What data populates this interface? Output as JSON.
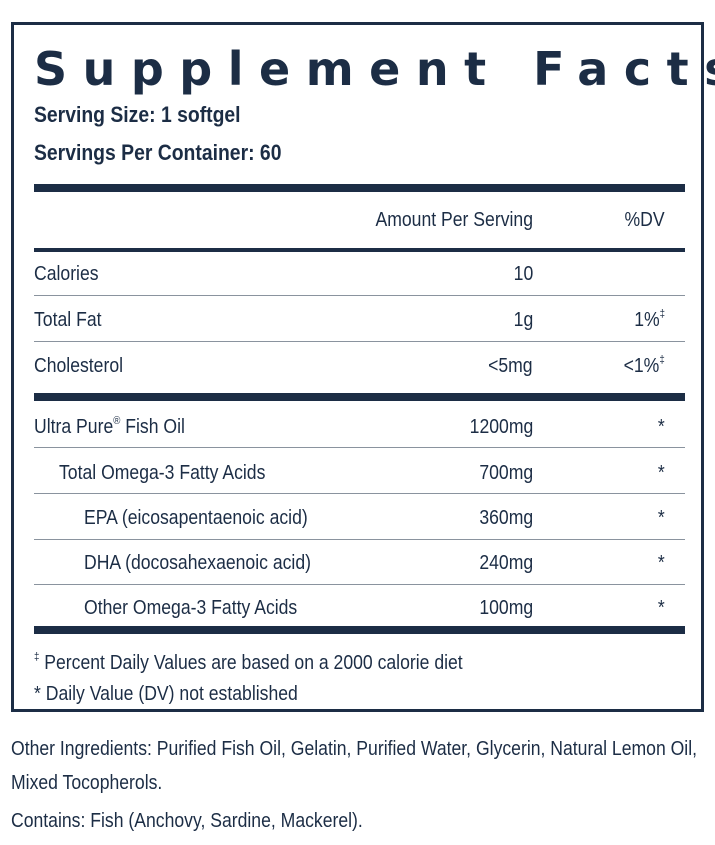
{
  "panel": {
    "title": "Supplement Facts",
    "serving_size": "Serving Size: 1 softgel",
    "servings_per_container": "Servings Per Container: 60",
    "header": {
      "amount": "Amount Per Serving",
      "dv": "%DV"
    },
    "rows": [
      {
        "label": "Calories",
        "amount": "10",
        "dv": ""
      },
      {
        "label": "Total Fat",
        "amount": "1g",
        "dv": "1%",
        "dv_mark": "‡"
      },
      {
        "label": "Cholesterol",
        "amount": "<5mg",
        "dv": "<1%",
        "dv_mark": "‡"
      }
    ],
    "fish_oil": {
      "label": "Ultra Pure",
      "mark": "®",
      "label_tail": " Fish Oil",
      "amount": "1200mg",
      "dv": "*"
    },
    "sub_rows": [
      {
        "label": "Total Omega-3 Fatty Acids",
        "amount": "700mg",
        "dv": "*"
      },
      {
        "label": "EPA (eicosapentaenoic acid)",
        "amount": "360mg",
        "dv": "*"
      },
      {
        "label": "DHA (docosahexaenoic acid)",
        "amount": "240mg",
        "dv": "*"
      },
      {
        "label": "Other Omega-3 Fatty Acids",
        "amount": "100mg",
        "dv": "*"
      }
    ],
    "footnotes": {
      "note1_mark": "‡",
      "note1": " Percent Daily Values are based on a 2000 calorie diet",
      "note2": "* Daily Value (DV) not established"
    }
  },
  "other_ingredients": "Other Ingredients: Purified Fish Oil, Gelatin, Purified Water, Glycerin, Natural Lemon Oil, Mixed Tocopherols.",
  "contains": "Contains: Fish (Anchovy, Sardine, Mackerel).",
  "colors": {
    "ink": "#1c2d45",
    "thin_rule": "#8a939e",
    "background": "#ffffff"
  }
}
